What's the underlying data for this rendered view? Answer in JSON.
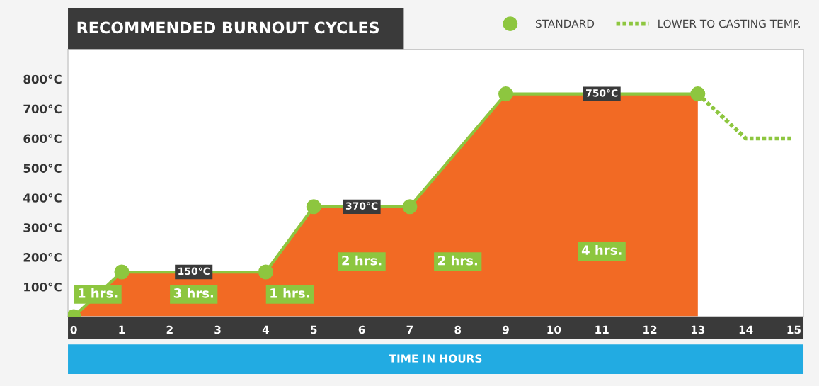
{
  "chart_data": {
    "type": "area",
    "title": "RECOMMENDED BURNOUT CYCLES",
    "xlabel": "TIME IN HOURS",
    "series": [
      {
        "name": "STANDARD",
        "color": "#8dc63f",
        "x": [
          0,
          1,
          4,
          5,
          7,
          9,
          13
        ],
        "values": [
          0,
          150,
          150,
          370,
          370,
          750,
          750
        ],
        "marker": "circle"
      },
      {
        "name": "LOWER TO CASTING TEMP.",
        "type": "line",
        "color": "#8dc63f",
        "x": [
          13,
          14,
          15
        ],
        "values": [
          750,
          600,
          600
        ],
        "line_style": "dotted"
      }
    ],
    "xlim": [
      -0.12,
      15.2
    ],
    "ylim": [
      0,
      900
    ],
    "xticks": [
      0,
      1,
      2,
      3,
      4,
      5,
      6,
      7,
      8,
      9,
      10,
      11,
      12,
      13,
      14,
      15
    ],
    "yticks": [
      {
        "value": 100,
        "label": "100°C"
      },
      {
        "value": 200,
        "label": "200°C"
      },
      {
        "value": 300,
        "label": "300°C"
      },
      {
        "value": 400,
        "label": "400°C"
      },
      {
        "value": 500,
        "label": "500°C"
      },
      {
        "value": 600,
        "label": "600°C"
      },
      {
        "value": 700,
        "label": "700°C"
      },
      {
        "value": 800,
        "label": "800°C"
      }
    ],
    "annotations": [
      {
        "text": "150°C",
        "x": 2.5,
        "y": 150
      },
      {
        "text": "370°C",
        "x": 6,
        "y": 370
      },
      {
        "text": "750°C",
        "x": 11,
        "y": 750
      },
      "1 hrs.",
      "3 hrs.",
      "1 hrs.",
      "2 hrs.",
      "2 hrs.",
      "4 hrs."
    ],
    "legend": "top right",
    "grid": false
  }
}
